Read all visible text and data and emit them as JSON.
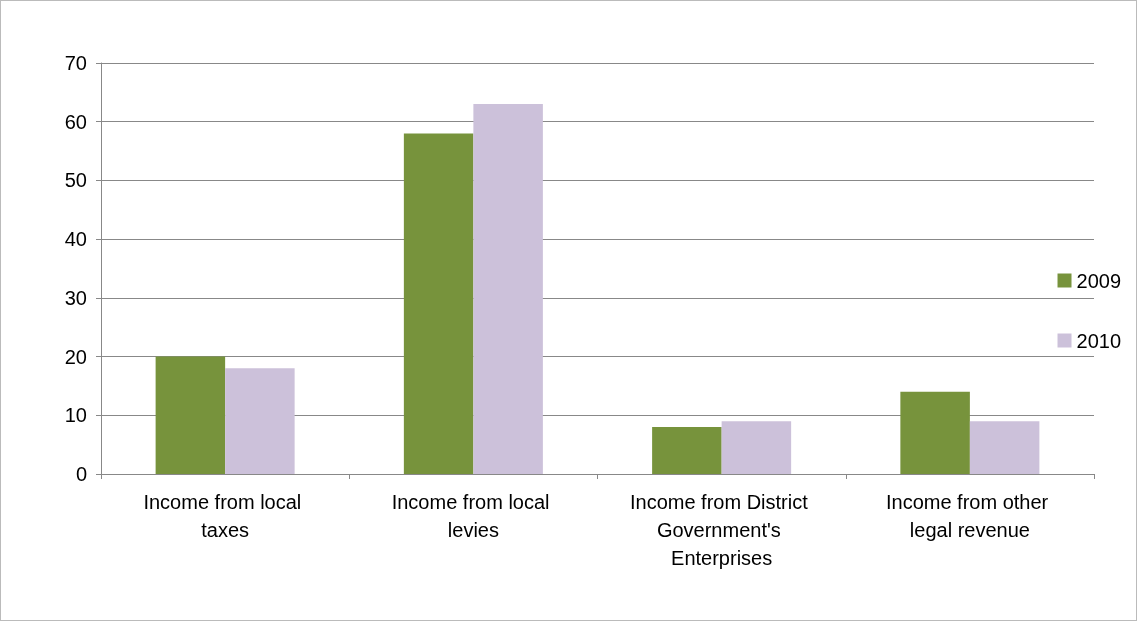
{
  "chart_data": {
    "type": "bar",
    "categories": [
      "Income from local taxes",
      "Income from local levies",
      "Income from District Government's Enterprises",
      "Income from other legal revenue"
    ],
    "series": [
      {
        "name": "2009",
        "color": "#77933c",
        "values": [
          20,
          58,
          8,
          14
        ]
      },
      {
        "name": "2010",
        "color": "#ccc1da",
        "values": [
          18,
          63,
          9,
          9
        ]
      }
    ],
    "ylim": [
      0,
      70
    ],
    "yticks": [
      0,
      10,
      20,
      30,
      40,
      50,
      60,
      70
    ],
    "grid": "y",
    "legend": "right"
  }
}
